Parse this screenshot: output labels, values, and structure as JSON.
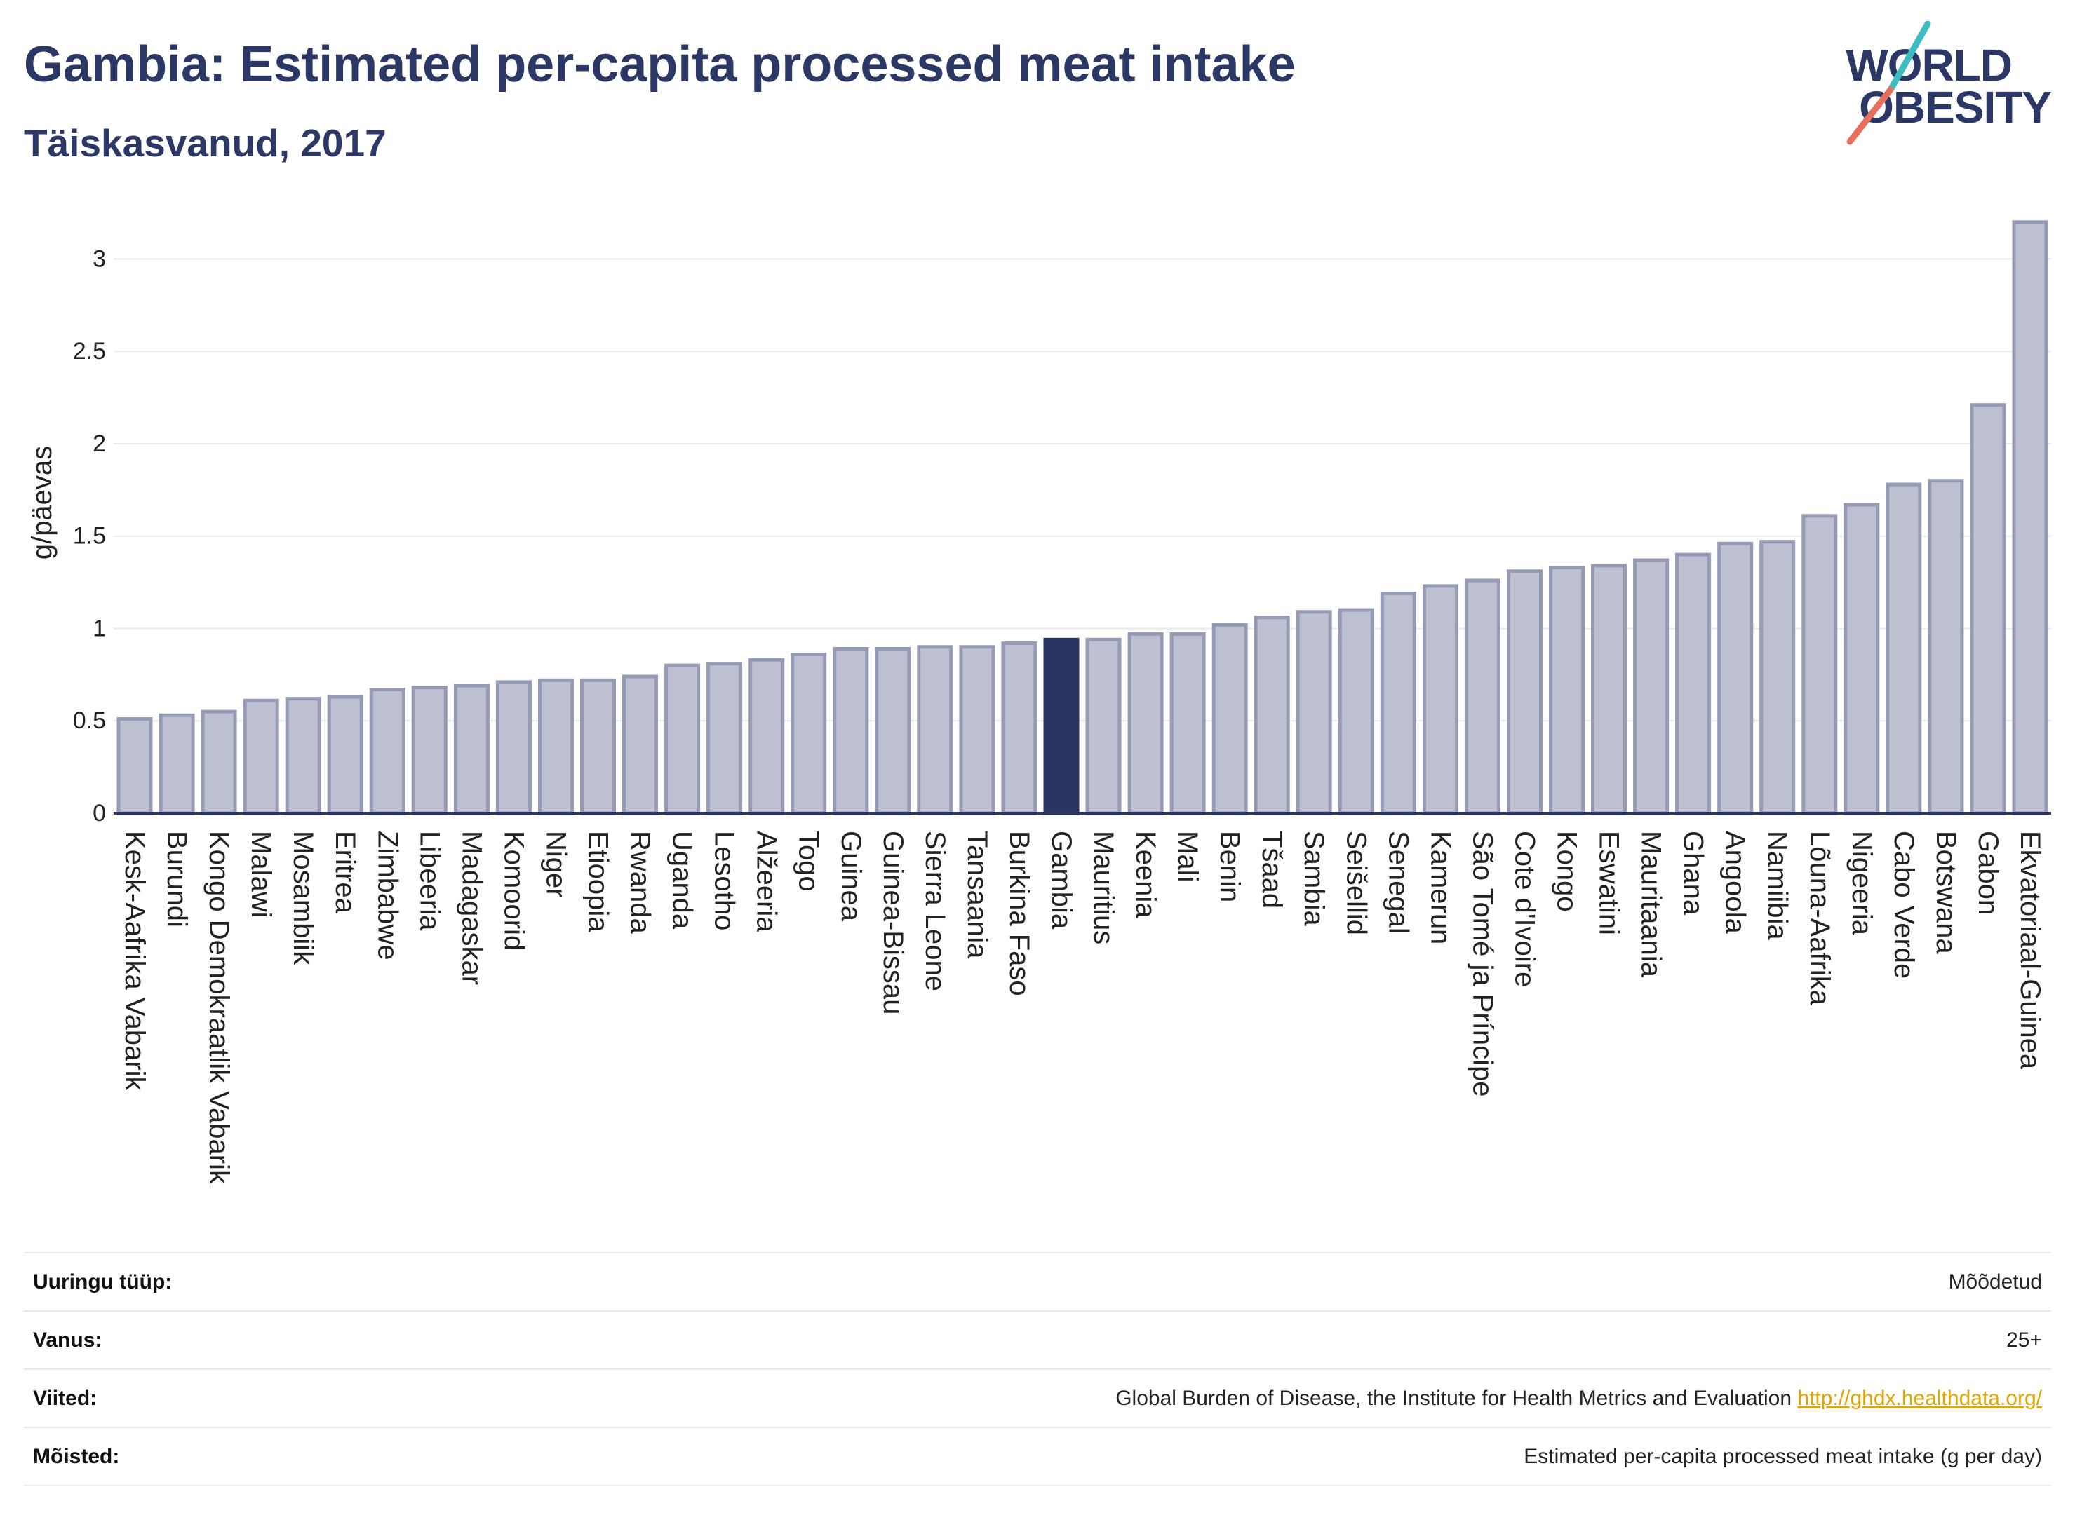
{
  "title": "Gambia: Estimated per-capita processed meat intake",
  "subtitle": "Täiskasvanud, 2017",
  "logo": {
    "line1": "WORLD",
    "line2": "OBESITY"
  },
  "colors": {
    "title": "#2b3765",
    "bar": "#bcc0d0",
    "bar_border": "#959bb5",
    "highlight": "#2a3462",
    "grid": "#e9eaee",
    "axis": "#2b3560",
    "link": "#e0a500",
    "logo_teal": "#3dbdc1",
    "logo_coral": "#e86f5c"
  },
  "chart_data": {
    "type": "bar",
    "ylabel": "g/päevas",
    "ylim": [
      0,
      3.37
    ],
    "yticks": [
      0,
      0.5,
      1,
      1.5,
      2,
      2.5,
      3
    ],
    "ytick_labels": [
      "0",
      "0.5",
      "1",
      "1.5",
      "2",
      "2.5",
      "3"
    ],
    "grid": true,
    "highlight": "Gambia",
    "categories": [
      "Kesk-Aafrika Vabarik",
      "Burundi",
      "Kongo Demokraatlik Vabarik",
      "Malawi",
      "Mosambiik",
      "Eritrea",
      "Zimbabwe",
      "Libeeria",
      "Madagaskar",
      "Komoorid",
      "Niger",
      "Etioopia",
      "Rwanda",
      "Uganda",
      "Lesotho",
      "Alžeeria",
      "Togo",
      "Guinea",
      "Guinea-Bissau",
      "Sierra Leone",
      "Tansaania",
      "Burkina Faso",
      "Gambia",
      "Mauritius",
      "Keenia",
      "Mali",
      "Benin",
      "Tšaad",
      "Sambia",
      "Seišellid",
      "Senegal",
      "Kamerun",
      "São Tomé ja Príncipe",
      "Cote d'Ivoire",
      "Kongo",
      "Eswatini",
      "Mauritaania",
      "Ghana",
      "Angoola",
      "Namiibia",
      "Lõuna-Aafrika",
      "Nigeeria",
      "Cabo Verde",
      "Botswana",
      "Gabon",
      "Ekvatoriaal-Guinea"
    ],
    "values": [
      0.51,
      0.53,
      0.55,
      0.61,
      0.62,
      0.63,
      0.67,
      0.68,
      0.69,
      0.71,
      0.72,
      0.72,
      0.74,
      0.8,
      0.81,
      0.83,
      0.86,
      0.89,
      0.89,
      0.9,
      0.9,
      0.92,
      0.94,
      0.94,
      0.97,
      0.97,
      1.02,
      1.06,
      1.09,
      1.1,
      1.19,
      1.23,
      1.26,
      1.31,
      1.33,
      1.34,
      1.37,
      1.4,
      1.46,
      1.47,
      1.61,
      1.67,
      1.78,
      1.8,
      2.21,
      3.2
    ]
  },
  "info": {
    "rows": [
      {
        "label": "Uuringu tüüp:",
        "value": "Mõõdetud"
      },
      {
        "label": "Vanus:",
        "value": "25+"
      },
      {
        "label": "Viited:",
        "value": "Global Burden of Disease, the Institute for Health Metrics and Evaluation",
        "link": "http://ghdx.healthdata.org/"
      },
      {
        "label": "Mõisted:",
        "value": "Estimated per-capita processed meat intake (g per day)"
      }
    ]
  }
}
